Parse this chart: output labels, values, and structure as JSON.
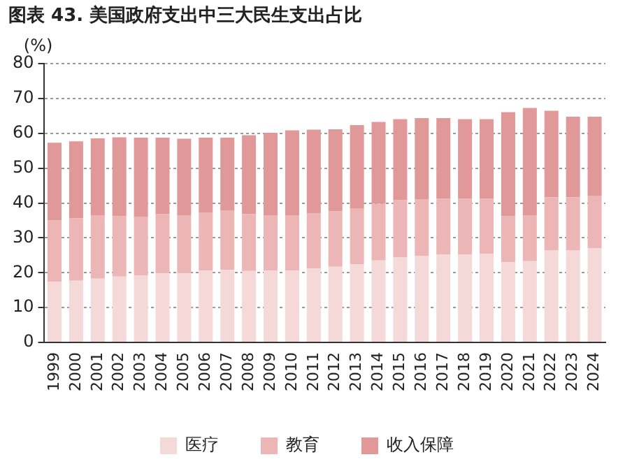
{
  "chart_data": {
    "type": "bar",
    "stacked": true,
    "title": "图表 43. 美国政府支出中三大民生支出占比",
    "ylabel": "(%)",
    "categories": [
      "1999",
      "2000",
      "2001",
      "2002",
      "2003",
      "2004",
      "2005",
      "2006",
      "2007",
      "2008",
      "2009",
      "2010",
      "2011",
      "2012",
      "2013",
      "2014",
      "2015",
      "2016",
      "2017",
      "2018",
      "2019",
      "2020",
      "2021",
      "2022",
      "2023",
      "2024"
    ],
    "series": [
      {
        "name": "医疗",
        "color": "#f5d9d9",
        "values": [
          17.4,
          17.7,
          18.3,
          18.9,
          19.2,
          19.8,
          19.8,
          20.6,
          20.8,
          20.5,
          20.6,
          20.6,
          21.2,
          21.7,
          22.4,
          23.5,
          24.4,
          24.8,
          25.2,
          25.2,
          25.5,
          23.0,
          23.3,
          26.5,
          26.5,
          27.1
        ]
      },
      {
        "name": "教育",
        "color": "#ecb6b6",
        "values": [
          17.6,
          17.9,
          18.2,
          17.3,
          16.9,
          17.0,
          16.7,
          16.7,
          17.1,
          16.3,
          15.9,
          15.9,
          15.9,
          15.9,
          16.1,
          16.3,
          16.4,
          16.3,
          16.0,
          16.0,
          15.7,
          13.2,
          13.2,
          15.2,
          15.2,
          14.9
        ]
      },
      {
        "name": "收入保障",
        "color": "#e09898",
        "values": [
          22.3,
          22.1,
          22.1,
          22.7,
          22.7,
          22.0,
          22.0,
          21.5,
          20.9,
          22.7,
          23.7,
          24.4,
          24.0,
          23.6,
          23.9,
          23.5,
          23.3,
          23.3,
          23.2,
          22.9,
          22.9,
          29.9,
          30.8,
          24.8,
          23.1,
          22.8
        ]
      }
    ],
    "ylim": [
      0,
      80
    ],
    "yticks": [
      0,
      10,
      20,
      30,
      40,
      50,
      60,
      70,
      80
    ],
    "grid": "y",
    "legend": "bottom"
  }
}
